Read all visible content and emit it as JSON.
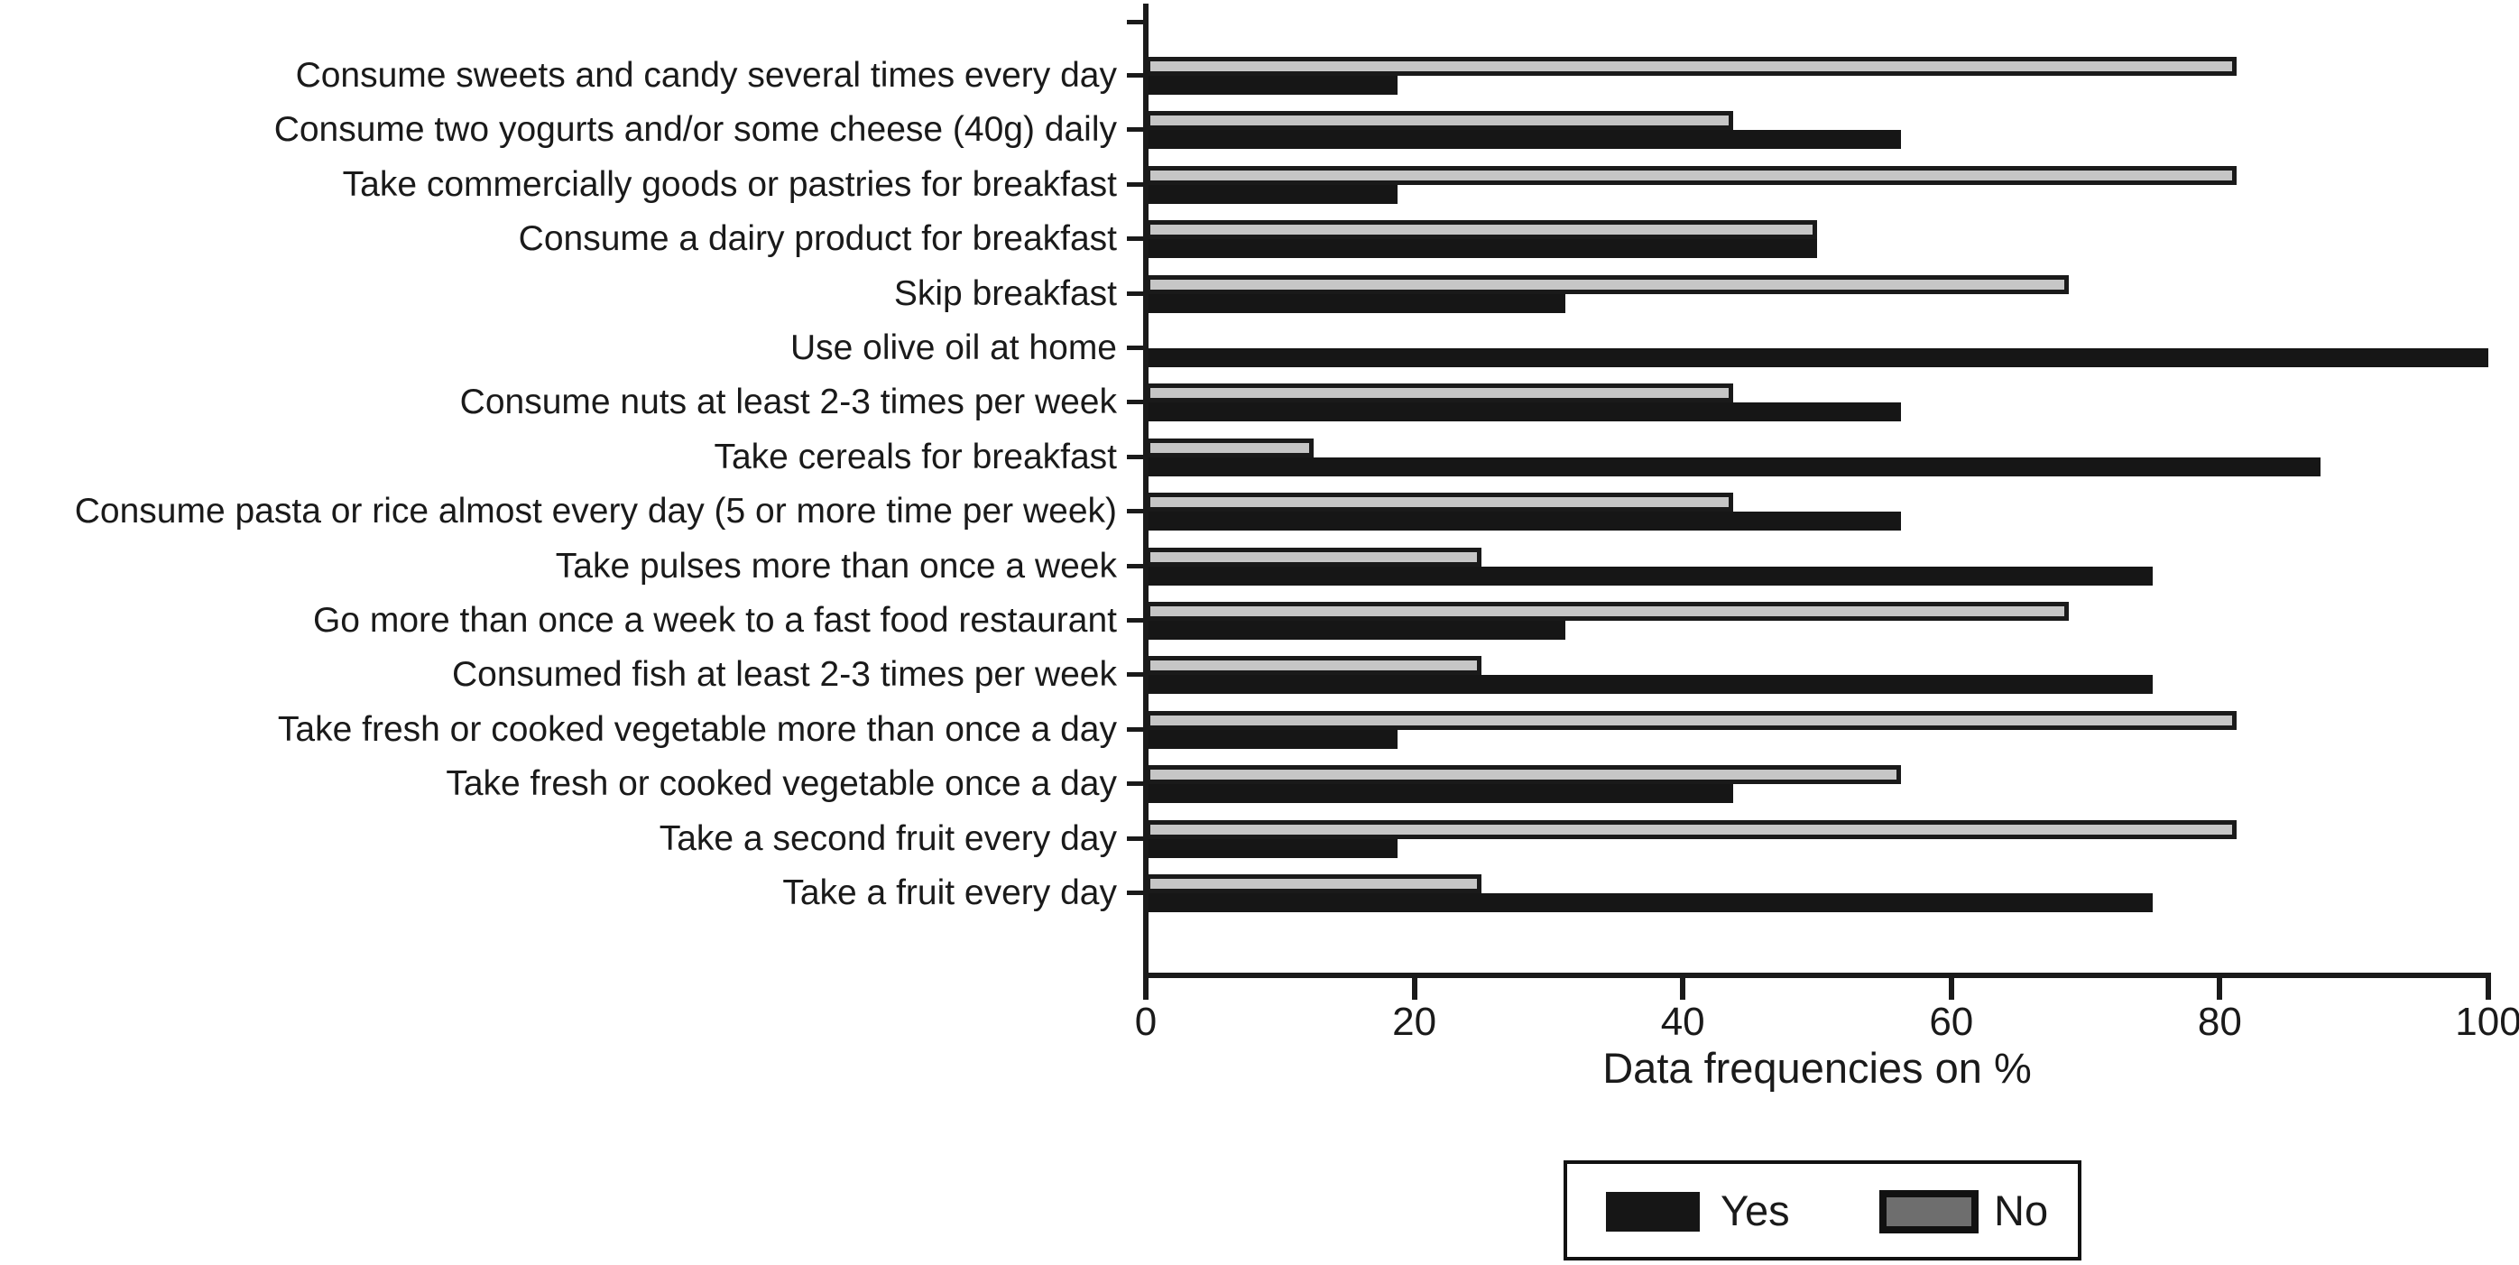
{
  "figure": {
    "background": "#ffffff",
    "text_color": "#1a1a1a"
  },
  "chart_data": {
    "type": "bar",
    "orientation": "horizontal",
    "title": "",
    "xlabel": "Data frequencies on %",
    "ylabel": "",
    "xlim": [
      0,
      100
    ],
    "xticks": [
      "0",
      "20",
      "40",
      "60",
      "80",
      "100"
    ],
    "grid": false,
    "bar_pair_order": "No bar drawn above Yes bar for each category",
    "categories": [
      "Consume sweets and candy several times every day",
      "Consume two yogurts and/or some cheese (40g) daily",
      "Take commercially goods or pastries for breakfast",
      "Consume a dairy product for breakfast",
      "Skip breakfast",
      "Use olive oil at home",
      "Consume nuts at least 2-3 times per week",
      "Take cereals for breakfast",
      "Consume pasta or rice almost every day (5 or more time per week)",
      "Take pulses more than once a week",
      "Go more than once a week to a fast food restaurant",
      "Consumed fish at least 2-3 times per week",
      "Take fresh or cooked vegetable more than once a day",
      "Take fresh or cooked vegetable once a day",
      "Take a second fruit every day",
      "Take a fruit every day"
    ],
    "series": [
      {
        "name": "Yes",
        "fill": "#161616",
        "values": [
          18.75,
          56.25,
          18.75,
          50,
          31.25,
          100,
          56.25,
          87.5,
          56.25,
          75,
          31.25,
          75,
          18.75,
          43.75,
          18.75,
          75
        ]
      },
      {
        "name": "No",
        "fill": "#c6c6c6",
        "edge": "#1a1a1a",
        "legend_fill": "#6e6e6e",
        "values": [
          81.25,
          43.75,
          81.25,
          50,
          68.75,
          0,
          43.75,
          12.5,
          43.75,
          25,
          68.75,
          25,
          81.25,
          56.25,
          81.25,
          25
        ]
      }
    ],
    "legend": {
      "position": "bottom-center-outside",
      "entries": [
        {
          "label": "Yes"
        },
        {
          "label": "No"
        }
      ]
    }
  }
}
